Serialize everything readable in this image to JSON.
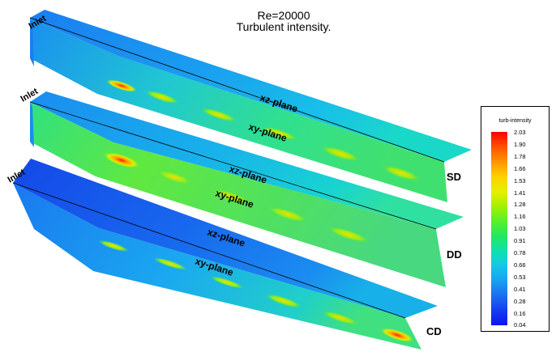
{
  "title": {
    "line1": "Re=20000",
    "line2": "Turbulent intensity."
  },
  "ducts": [
    {
      "case": "SD",
      "inlet": "Inlet",
      "xz_label": "xz-plane",
      "xy_label": "xy-plane"
    },
    {
      "case": "DD",
      "inlet": "Inlet",
      "xz_label": "xz-plane",
      "xy_label": "xy-plane"
    },
    {
      "case": "CD",
      "inlet": "Inlet",
      "xz_label": "xz-plane",
      "xy_label": "xy-plane"
    }
  ],
  "legend": {
    "title": "turb-intensity",
    "ticks": [
      "2.03",
      "1.90",
      "1.78",
      "1.66",
      "1.53",
      "1.41",
      "1.28",
      "1.16",
      "1.03",
      "0.91",
      "0.78",
      "0.66",
      "0.53",
      "0.41",
      "0.28",
      "0.16",
      "0.04"
    ],
    "colors": [
      "#ff0000",
      "#ff9900",
      "#e6f000",
      "#5af028",
      "#10e0b0",
      "#1aa0f0",
      "#1440f0",
      "#0a14f0"
    ]
  }
}
